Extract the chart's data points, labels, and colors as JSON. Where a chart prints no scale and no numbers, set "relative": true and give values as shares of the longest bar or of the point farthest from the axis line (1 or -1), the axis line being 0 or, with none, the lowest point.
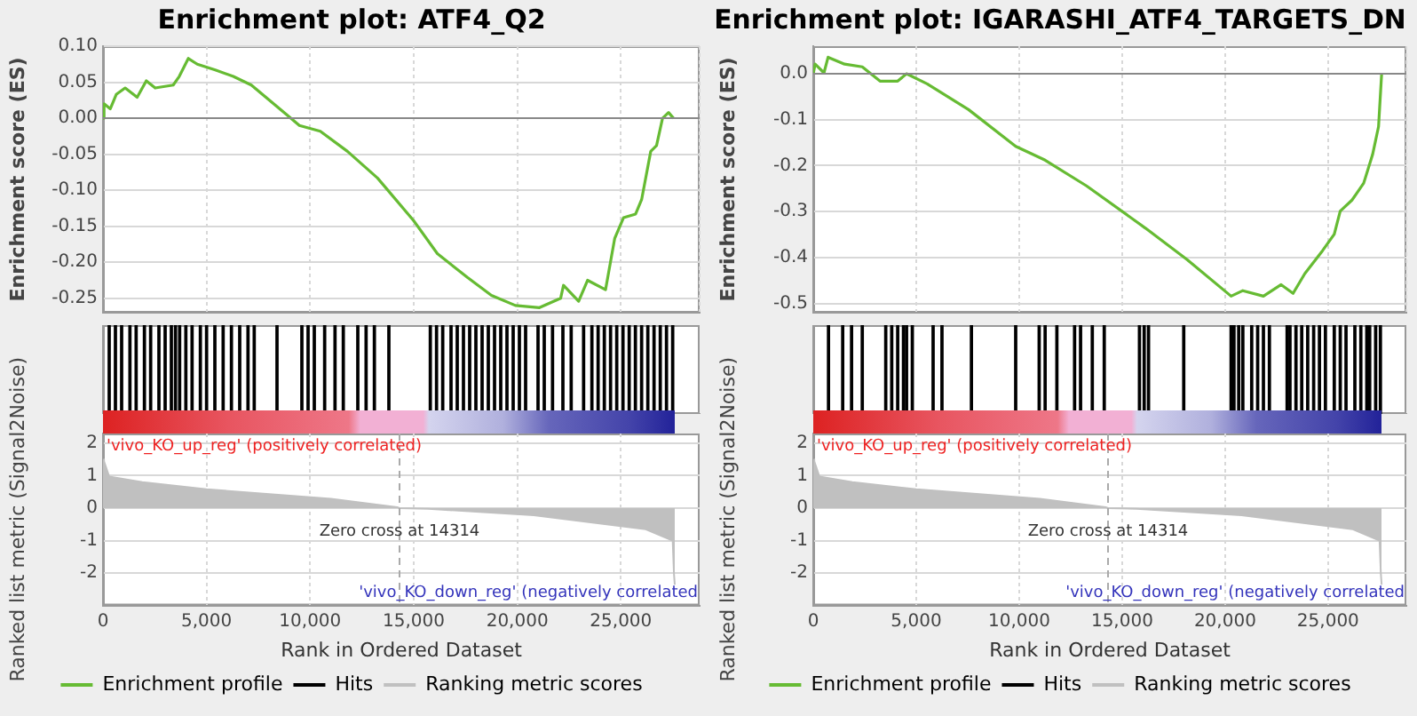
{
  "chart_data": [
    {
      "type": "line",
      "title": "Enrichment plot: ATF4_Q2",
      "ylabel": "Enrichment score (ES)",
      "tick_labels": "y",
      "grid": true,
      "xlim": [
        0,
        28800
      ],
      "ylim": [
        -0.27,
        0.1
      ],
      "yticks": [
        {
          "value": 0.1,
          "label": "0.10"
        },
        {
          "value": 0.05,
          "label": "0.05"
        },
        {
          "value": 0,
          "label": "0.00"
        },
        {
          "value": -0.05,
          "label": "-0.05"
        },
        {
          "value": -0.1,
          "label": "-0.10"
        },
        {
          "value": -0.15,
          "label": "-0.15"
        },
        {
          "value": -0.2,
          "label": "-0.20"
        },
        {
          "value": -0.25,
          "label": "-0.25"
        }
      ],
      "ref_lines": [
        {
          "axis": "y",
          "value": 0,
          "color": "#888888"
        }
      ],
      "series": [
        {
          "name": "Enrichment profile",
          "color": "#66bb33",
          "x": [
            0,
            50,
            350,
            640,
            1070,
            1650,
            2090,
            2520,
            3390,
            3680,
            4120,
            4550,
            5420,
            6290,
            7160,
            8030,
            8900,
            9480,
            10490,
            11800,
            13250,
            14990,
            16140,
            17590,
            18750,
            19910,
            21070,
            22090,
            22230,
            22960,
            23390,
            24260,
            24700,
            25130,
            25710,
            26000,
            26440,
            26720,
            27010,
            27300,
            27540
          ],
          "values": [
            0,
            0.02,
            0.013,
            0.033,
            0.042,
            0.029,
            0.052,
            0.042,
            0.046,
            0.058,
            0.083,
            0.075,
            0.067,
            0.058,
            0.046,
            0.025,
            0.004,
            -0.01,
            -0.018,
            -0.046,
            -0.083,
            -0.142,
            -0.188,
            -0.221,
            -0.246,
            -0.26,
            -0.263,
            -0.25,
            -0.232,
            -0.254,
            -0.225,
            -0.238,
            -0.167,
            -0.138,
            -0.133,
            -0.113,
            -0.046,
            -0.038,
            0,
            0.008,
            0
          ]
        }
      ]
    },
    {
      "type": "bar",
      "relative": true,
      "tick_labels": false,
      "xlim": [
        0,
        28800
      ],
      "series": [
        {
          "name": "Hits",
          "color": "#000000",
          "x": [
            300,
            600,
            900,
            1300,
            1600,
            2000,
            2300,
            2700,
            3000,
            3300,
            3500,
            3700,
            4000,
            4300,
            4700,
            5000,
            5400,
            5800,
            6200,
            6600,
            7000,
            7300,
            8400,
            9600,
            9900,
            10200,
            10700,
            11200,
            11600,
            12300,
            12700,
            13100,
            13800,
            15800,
            16100,
            16400,
            16800,
            17100,
            17400,
            17700,
            18000,
            18300,
            18600,
            18900,
            19200,
            19500,
            19800,
            20100,
            20400,
            21000,
            21300,
            21700,
            22200,
            22600,
            23200,
            23600,
            23900,
            24200,
            24500,
            24800,
            25100,
            25400,
            25700,
            26000,
            26300,
            26600,
            26900,
            27200,
            27500
          ],
          "values": [
            1,
            1,
            1,
            1,
            1,
            1,
            1,
            1,
            1,
            1,
            1,
            1,
            1,
            1,
            1,
            1,
            1,
            1,
            1,
            1,
            1,
            1,
            1,
            1,
            1,
            1,
            1,
            1,
            1,
            1,
            1,
            1,
            1,
            1,
            1,
            1,
            1,
            1,
            1,
            1,
            1,
            1,
            1,
            1,
            1,
            1,
            1,
            1,
            1,
            1,
            1,
            1,
            1,
            1,
            1,
            1,
            1,
            1,
            1,
            1,
            1,
            1,
            1,
            1,
            1,
            1,
            1,
            1,
            1
          ]
        }
      ]
    },
    {
      "type": "area",
      "xlabel": "Rank in Ordered Dataset",
      "ylabel": "Ranked list metric (Signal2Noise)",
      "legend": "bottom",
      "grid": true,
      "xlim": [
        0,
        28800
      ],
      "xticks": [
        0,
        {
          "value": 5000,
          "label": "5,000"
        },
        {
          "value": 10000,
          "label": "10,000"
        },
        {
          "value": 15000,
          "label": "15,000"
        },
        {
          "value": 20000,
          "label": "20,000"
        },
        {
          "value": 25000,
          "label": "25,000"
        }
      ],
      "ylim": [
        -3,
        2.3
      ],
      "yticks": [
        -2,
        -1,
        0,
        1,
        2
      ],
      "ref_lines": [
        {
          "axis": "x",
          "value": 14314,
          "label": "Zero cross at 14314",
          "line_style": "dashed",
          "color": "#aaaaaa"
        }
      ],
      "annotations": [
        "'vivo_KO_up_reg' (positively correlated)",
        "'vivo_KO_down_reg' (negatively correlated"
      ],
      "series": [
        {
          "name": "Ranking metric scores",
          "color": "#c0c0c0",
          "x": [
            0,
            50,
            300,
            1900,
            5000,
            11000,
            14200,
            14314,
            15700,
            20800,
            26200,
            27500,
            27560,
            27600
          ],
          "values": [
            1.5,
            1.44,
            0.97,
            0.8,
            0.58,
            0.29,
            0.03,
            0,
            -0.02,
            -0.22,
            -0.65,
            -1.0,
            -2.0,
            -2.36
          ]
        }
      ]
    },
    {
      "type": "line",
      "title": "Enrichment plot: IGARASHI_ATF4_TARGETS_DN",
      "ylabel": "Enrichment score (ES)",
      "tick_labels": "y",
      "grid": true,
      "xlim": [
        0,
        28800
      ],
      "ylim": [
        -0.52,
        0.06
      ],
      "yticks": [
        {
          "value": 0,
          "label": "0.0"
        },
        {
          "value": -0.1,
          "label": "-0.1"
        },
        {
          "value": -0.2,
          "label": "-0.2"
        },
        {
          "value": -0.3,
          "label": "-0.3"
        },
        {
          "value": -0.4,
          "label": "-0.4"
        },
        {
          "value": -0.5,
          "label": "-0.5"
        }
      ],
      "ref_lines": [
        {
          "axis": "y",
          "value": 0,
          "color": "#888888"
        }
      ],
      "series": [
        {
          "name": "Enrichment profile",
          "color": "#66bb33",
          "x": [
            0,
            90,
            520,
            720,
            1520,
            2380,
            3240,
            4100,
            4530,
            5530,
            7540,
            9830,
            11260,
            13270,
            16130,
            18140,
            20290,
            20860,
            21860,
            22720,
            23300,
            23870,
            24730,
            25300,
            25590,
            26160,
            26730,
            27160,
            27450,
            27600
          ],
          "values": [
            0,
            0.021,
            0.002,
            0.036,
            0.021,
            0.015,
            -0.016,
            -0.016,
            0,
            -0.022,
            -0.078,
            -0.158,
            -0.188,
            -0.244,
            -0.336,
            -0.404,
            -0.484,
            -0.472,
            -0.484,
            -0.459,
            -0.478,
            -0.435,
            -0.385,
            -0.349,
            -0.299,
            -0.275,
            -0.238,
            -0.176,
            -0.115,
            0
          ]
        }
      ]
    },
    {
      "type": "bar",
      "relative": true,
      "tick_labels": false,
      "xlim": [
        0,
        28800
      ],
      "series": [
        {
          "name": "Hits",
          "color": "#000000",
          "x": [
            740,
            1430,
            1860,
            2380,
            3520,
            3810,
            4100,
            4380,
            4530,
            4810,
            5820,
            6250,
            7680,
            9830,
            10970,
            11260,
            11830,
            12690,
            12980,
            13550,
            14130,
            15840,
            16070,
            16280,
            17990,
            20290,
            20430,
            20660,
            20860,
            21290,
            21580,
            21860,
            22150,
            23010,
            23150,
            23440,
            23720,
            24010,
            24300,
            24580,
            24870,
            25300,
            25590,
            25870,
            26300,
            26590,
            26880,
            27020,
            27310,
            27540
          ],
          "values": [
            1,
            1,
            1,
            1,
            1,
            1,
            1,
            1,
            1,
            1,
            1,
            1,
            1,
            1,
            1,
            1,
            1,
            1,
            1,
            1,
            1,
            1,
            1,
            1,
            1,
            1,
            1,
            1,
            1,
            1,
            1,
            1,
            1,
            1,
            1,
            1,
            1,
            1,
            1,
            1,
            1,
            1,
            1,
            1,
            1,
            1,
            1,
            1,
            1,
            1
          ]
        }
      ]
    },
    {
      "type": "area",
      "xlabel": "Rank in Ordered Dataset",
      "ylabel": "Ranked list metric (Signal2Noise)",
      "legend": "bottom",
      "grid": true,
      "xlim": [
        0,
        28800
      ],
      "xticks": [
        0,
        {
          "value": 5000,
          "label": "5,000"
        },
        {
          "value": 10000,
          "label": "10,000"
        },
        {
          "value": 15000,
          "label": "15,000"
        },
        {
          "value": 20000,
          "label": "20,000"
        },
        {
          "value": 25000,
          "label": "25,000"
        }
      ],
      "ylim": [
        -3,
        2.3
      ],
      "yticks": [
        -2,
        -1,
        0,
        1,
        2
      ],
      "ref_lines": [
        {
          "axis": "x",
          "value": 14314,
          "label": "Zero cross at 14314",
          "line_style": "dashed",
          "color": "#aaaaaa"
        }
      ],
      "annotations": [
        "'vivo_KO_up_reg' (positively correlated)",
        "'vivo_KO_down_reg' (negatively correlated"
      ],
      "series": [
        {
          "name": "Ranking metric scores",
          "color": "#c0c0c0",
          "x": [
            0,
            50,
            300,
            1900,
            5000,
            11000,
            14200,
            14314,
            15700,
            20800,
            26200,
            27500,
            27560,
            27600
          ],
          "values": [
            1.5,
            1.44,
            0.97,
            0.8,
            0.58,
            0.29,
            0.03,
            0,
            -0.02,
            -0.22,
            -0.65,
            -1.0,
            -2.0,
            -2.36
          ]
        }
      ]
    }
  ]
}
